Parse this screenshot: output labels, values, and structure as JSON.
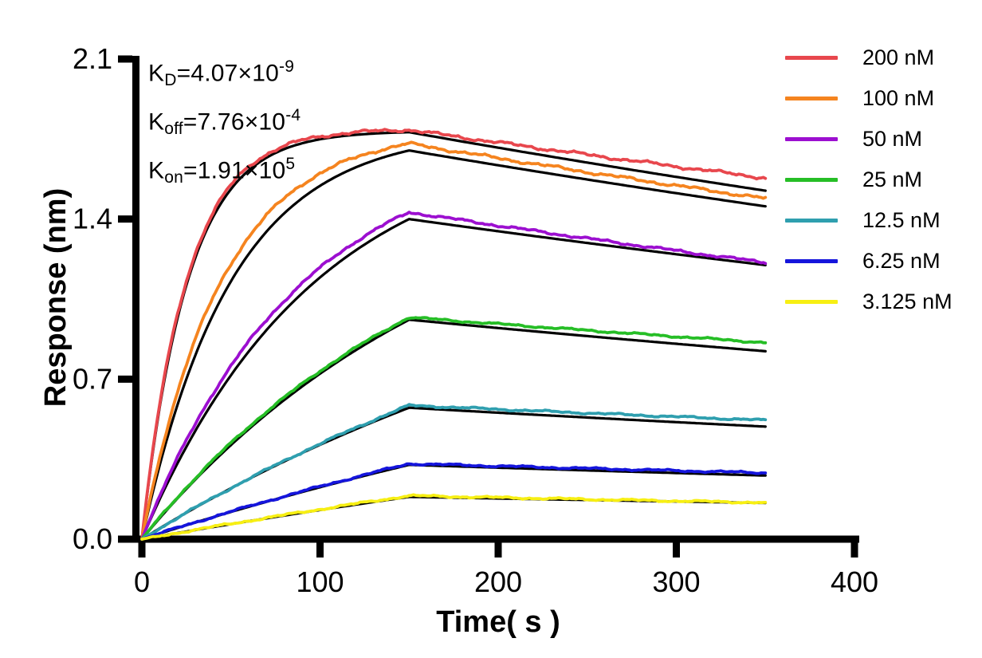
{
  "figure": {
    "background": "#ffffff"
  },
  "annotations": {
    "kd": {
      "base": "K",
      "sub": "D",
      "mid": "=4.07×10",
      "sup": "-9"
    },
    "koff": {
      "base": "K",
      "sub": "off",
      "mid": "=7.76×10",
      "sup": "-4"
    },
    "kon": {
      "base": "K",
      "sub": "on",
      "mid": "=1.91×10",
      "sup": "5"
    }
  },
  "chart_data": {
    "type": "line",
    "title": "",
    "xlabel": "Time( s )",
    "ylabel": "Response (nm)",
    "xlim": [
      0,
      400
    ],
    "ylim": [
      0.0,
      2.1
    ],
    "xticks": [
      "0",
      "100",
      "200",
      "300",
      "400"
    ],
    "yticks": [
      "0.0",
      "0.7",
      "1.4",
      "2.1"
    ],
    "grid": false,
    "legend_position": "right-outside",
    "axis_color": "#000000",
    "fit_line_color": "#000000",
    "kinetics": {
      "KD_display": "4.07×10^-9",
      "koff_display": "7.76×10^-4",
      "kon_display": "1.91×10^5",
      "kon_value": 191000,
      "koff_value": 0.000776
    },
    "phases": {
      "association_s": [
        0,
        150
      ],
      "dissociation_s": [
        150,
        350
      ]
    },
    "t_samples": [
      0,
      25,
      50,
      75,
      100,
      125,
      150,
      200,
      250,
      300,
      350
    ],
    "series": [
      {
        "label": "200 nM",
        "concentration_nM": 200,
        "color": "#E8474D",
        "peak_nm": 1.79,
        "end_nm": 1.58,
        "fit_peak_nm": 1.78,
        "rise_bias": 1.02,
        "response_nm": [
          0,
          1.13,
          1.55,
          1.7,
          1.76,
          1.78,
          1.79,
          1.73,
          1.68,
          1.63,
          1.58
        ]
      },
      {
        "label": "100 nM",
        "concentration_nM": 100,
        "color": "#F5841F",
        "peak_nm": 1.73,
        "end_nm": 1.49,
        "fit_peak_nm": 1.7,
        "rise_bias": 1.12,
        "response_nm": [
          0,
          0.77,
          1.2,
          1.46,
          1.6,
          1.68,
          1.73,
          1.67,
          1.61,
          1.55,
          1.49
        ]
      },
      {
        "label": "50 nM",
        "concentration_nM": 50,
        "color": "#9C0FD0",
        "peak_nm": 1.43,
        "end_nm": 1.21,
        "fit_peak_nm": 1.4,
        "rise_bias": 1.1,
        "response_nm": [
          0,
          0.43,
          0.76,
          1.0,
          1.19,
          1.33,
          1.43,
          1.37,
          1.32,
          1.26,
          1.21
        ]
      },
      {
        "label": "25 nM",
        "concentration_nM": 25,
        "color": "#26BE26",
        "peak_nm": 0.97,
        "end_nm": 0.86,
        "fit_peak_nm": 0.96,
        "rise_bias": 1.05,
        "response_nm": [
          0,
          0.23,
          0.42,
          0.59,
          0.74,
          0.86,
          0.97,
          0.94,
          0.91,
          0.89,
          0.86
        ]
      },
      {
        "label": "12.5 nM",
        "concentration_nM": 12.5,
        "color": "#2F9FAF",
        "peak_nm": 0.585,
        "end_nm": 0.52,
        "fit_peak_nm": 0.575,
        "rise_bias": 0.9,
        "response_nm": [
          0,
          0.12,
          0.22,
          0.32,
          0.42,
          0.5,
          0.59,
          0.57,
          0.55,
          0.54,
          0.52
        ]
      },
      {
        "label": "6.25 nM",
        "concentration_nM": 6.25,
        "color": "#1515DC",
        "peak_nm": 0.33,
        "end_nm": 0.29,
        "fit_peak_nm": 0.325,
        "rise_bias": 0.97,
        "response_nm": [
          0,
          0.06,
          0.12,
          0.18,
          0.23,
          0.28,
          0.33,
          0.32,
          0.31,
          0.3,
          0.29
        ]
      },
      {
        "label": "3.125 nM",
        "concentration_nM": 3.125,
        "color": "#F7EF13",
        "peak_nm": 0.19,
        "end_nm": 0.16,
        "fit_peak_nm": 0.185,
        "rise_bias": 0.9,
        "response_nm": [
          0,
          0.03,
          0.07,
          0.1,
          0.13,
          0.16,
          0.19,
          0.18,
          0.17,
          0.17,
          0.16
        ]
      }
    ]
  }
}
